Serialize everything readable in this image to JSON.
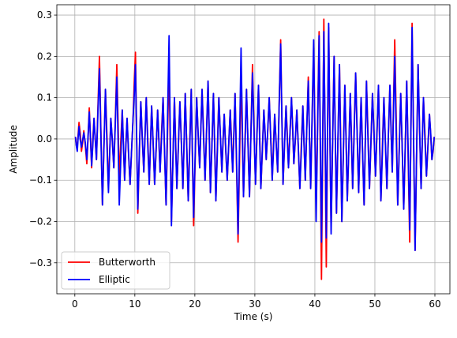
{
  "chart_data": {
    "type": "line",
    "xlabel": "Time (s)",
    "ylabel": "Amplitude",
    "xlim": [
      -3,
      62.5
    ],
    "ylim": [
      -0.375,
      0.325
    ],
    "xticks": [
      0,
      10,
      20,
      30,
      40,
      50,
      60
    ],
    "yticks": [
      -0.3,
      -0.2,
      -0.1,
      0.0,
      0.1,
      0.2,
      0.3
    ],
    "xtick_labels": [
      "0",
      "10",
      "20",
      "30",
      "40",
      "50",
      "60"
    ],
    "ytick_labels": [
      "−0.3",
      "−0.2",
      "−0.1",
      "0.0",
      "0.1",
      "0.2",
      "0.3"
    ],
    "grid": true,
    "legend_position": "lower-left",
    "series": [
      {
        "name": "Butterworth",
        "color": "#ff0000",
        "peaks": [
          [
            0.1,
            0.005
          ],
          [
            0.4,
            -0.02
          ],
          [
            0.7,
            0.04
          ],
          [
            1.1,
            -0.03
          ],
          [
            1.5,
            0.02
          ],
          [
            2.0,
            -0.06
          ],
          [
            2.4,
            0.075
          ],
          [
            2.8,
            -0.07
          ],
          [
            3.2,
            0.05
          ],
          [
            3.6,
            -0.05
          ],
          [
            4.1,
            0.2
          ],
          [
            4.6,
            -0.16
          ],
          [
            5.1,
            0.12
          ],
          [
            5.6,
            -0.12
          ],
          [
            6.0,
            0.05
          ],
          [
            6.5,
            -0.07
          ],
          [
            7.0,
            0.18
          ],
          [
            7.4,
            -0.1
          ],
          [
            7.9,
            0.07
          ],
          [
            8.3,
            -0.1
          ],
          [
            8.7,
            0.05
          ],
          [
            9.2,
            -0.11
          ],
          [
            9.7,
            0.05
          ],
          [
            10.1,
            0.21
          ],
          [
            10.5,
            -0.18
          ],
          [
            11.0,
            0.09
          ],
          [
            11.5,
            -0.08
          ],
          [
            11.9,
            0.1
          ],
          [
            12.4,
            -0.11
          ],
          [
            12.8,
            0.08
          ],
          [
            13.3,
            -0.11
          ],
          [
            13.8,
            0.07
          ],
          [
            14.2,
            -0.08
          ],
          [
            14.7,
            0.1
          ],
          [
            15.2,
            -0.16
          ],
          [
            15.7,
            0.18
          ],
          [
            16.1,
            -0.2
          ],
          [
            16.6,
            0.1
          ],
          [
            17.0,
            -0.12
          ],
          [
            17.5,
            0.09
          ],
          [
            18.0,
            -0.12
          ],
          [
            18.4,
            0.11
          ],
          [
            18.9,
            -0.15
          ],
          [
            19.4,
            0.12
          ],
          [
            19.8,
            -0.21
          ],
          [
            20.3,
            0.1
          ],
          [
            20.8,
            -0.07
          ],
          [
            21.2,
            0.12
          ],
          [
            21.7,
            -0.1
          ],
          [
            22.2,
            0.14
          ],
          [
            22.6,
            -0.13
          ],
          [
            23.1,
            0.11
          ],
          [
            23.5,
            -0.15
          ],
          [
            24.0,
            0.1
          ],
          [
            24.5,
            -0.08
          ],
          [
            24.9,
            0.06
          ],
          [
            25.4,
            -0.1
          ],
          [
            25.9,
            0.07
          ],
          [
            26.3,
            -0.08
          ],
          [
            26.7,
            0.11
          ],
          [
            27.2,
            -0.25
          ],
          [
            27.7,
            0.16
          ],
          [
            28.1,
            -0.14
          ],
          [
            28.6,
            0.12
          ],
          [
            29.1,
            -0.14
          ],
          [
            29.6,
            0.18
          ],
          [
            30.1,
            -0.11
          ],
          [
            30.6,
            0.13
          ],
          [
            31.0,
            -0.12
          ],
          [
            31.5,
            0.07
          ],
          [
            31.9,
            -0.05
          ],
          [
            32.4,
            0.1
          ],
          [
            32.9,
            -0.1
          ],
          [
            33.3,
            0.06
          ],
          [
            33.8,
            -0.08
          ],
          [
            34.3,
            0.24
          ],
          [
            34.7,
            -0.11
          ],
          [
            35.2,
            0.08
          ],
          [
            35.6,
            -0.07
          ],
          [
            36.1,
            0.1
          ],
          [
            36.5,
            -0.06
          ],
          [
            37.0,
            0.07
          ],
          [
            37.5,
            -0.12
          ],
          [
            38.0,
            0.08
          ],
          [
            38.4,
            -0.1
          ],
          [
            38.9,
            0.15
          ],
          [
            39.3,
            -0.12
          ],
          [
            39.8,
            0.22
          ],
          [
            40.2,
            -0.16
          ],
          [
            40.7,
            0.26
          ],
          [
            41.1,
            -0.34
          ],
          [
            41.5,
            0.29
          ],
          [
            41.9,
            -0.31
          ],
          [
            42.3,
            0.27
          ],
          [
            42.7,
            -0.22
          ],
          [
            43.2,
            0.2
          ],
          [
            43.6,
            -0.18
          ],
          [
            44.1,
            0.18
          ],
          [
            44.5,
            -0.2
          ],
          [
            45.0,
            0.13
          ],
          [
            45.4,
            -0.15
          ],
          [
            45.9,
            0.11
          ],
          [
            46.3,
            -0.12
          ],
          [
            46.8,
            0.16
          ],
          [
            47.3,
            -0.13
          ],
          [
            47.7,
            0.1
          ],
          [
            48.2,
            -0.16
          ],
          [
            48.6,
            0.14
          ],
          [
            49.1,
            -0.12
          ],
          [
            49.6,
            0.11
          ],
          [
            50.1,
            -0.09
          ],
          [
            50.6,
            0.13
          ],
          [
            51.0,
            -0.15
          ],
          [
            51.5,
            0.1
          ],
          [
            52.0,
            -0.12
          ],
          [
            52.5,
            0.13
          ],
          [
            52.9,
            -0.08
          ],
          [
            53.3,
            0.24
          ],
          [
            53.8,
            -0.16
          ],
          [
            54.3,
            0.11
          ],
          [
            54.8,
            -0.17
          ],
          [
            55.3,
            0.14
          ],
          [
            55.8,
            -0.25
          ],
          [
            56.2,
            0.28
          ],
          [
            56.7,
            -0.27
          ],
          [
            57.2,
            0.18
          ],
          [
            57.7,
            -0.12
          ],
          [
            58.1,
            0.1
          ],
          [
            58.6,
            -0.09
          ],
          [
            59.1,
            0.06
          ],
          [
            59.5,
            -0.05
          ],
          [
            59.9,
            0.005
          ]
        ]
      },
      {
        "name": "Elliptic",
        "color": "#0000ff",
        "peaks": [
          [
            0.1,
            0.005
          ],
          [
            0.4,
            -0.03
          ],
          [
            0.7,
            0.03
          ],
          [
            1.1,
            -0.02
          ],
          [
            1.5,
            0.015
          ],
          [
            2.0,
            -0.05
          ],
          [
            2.4,
            0.065
          ],
          [
            2.8,
            -0.065
          ],
          [
            3.2,
            0.05
          ],
          [
            3.6,
            -0.05
          ],
          [
            4.1,
            0.17
          ],
          [
            4.6,
            -0.16
          ],
          [
            5.1,
            0.12
          ],
          [
            5.6,
            -0.13
          ],
          [
            6.0,
            0.05
          ],
          [
            6.5,
            -0.07
          ],
          [
            7.0,
            0.15
          ],
          [
            7.4,
            -0.16
          ],
          [
            7.9,
            0.07
          ],
          [
            8.3,
            -0.1
          ],
          [
            8.7,
            0.05
          ],
          [
            9.2,
            -0.11
          ],
          [
            9.7,
            0.05
          ],
          [
            10.1,
            0.18
          ],
          [
            10.5,
            -0.17
          ],
          [
            11.0,
            0.09
          ],
          [
            11.5,
            -0.08
          ],
          [
            11.9,
            0.1
          ],
          [
            12.4,
            -0.11
          ],
          [
            12.8,
            0.08
          ],
          [
            13.3,
            -0.11
          ],
          [
            13.8,
            0.07
          ],
          [
            14.2,
            -0.08
          ],
          [
            14.7,
            0.1
          ],
          [
            15.2,
            -0.16
          ],
          [
            15.7,
            0.25
          ],
          [
            16.1,
            -0.21
          ],
          [
            16.6,
            0.1
          ],
          [
            17.0,
            -0.12
          ],
          [
            17.5,
            0.09
          ],
          [
            18.0,
            -0.12
          ],
          [
            18.4,
            0.11
          ],
          [
            18.9,
            -0.15
          ],
          [
            19.4,
            0.12
          ],
          [
            19.8,
            -0.19
          ],
          [
            20.3,
            0.1
          ],
          [
            20.8,
            -0.07
          ],
          [
            21.2,
            0.12
          ],
          [
            21.7,
            -0.1
          ],
          [
            22.2,
            0.14
          ],
          [
            22.6,
            -0.13
          ],
          [
            23.1,
            0.11
          ],
          [
            23.5,
            -0.15
          ],
          [
            24.0,
            0.1
          ],
          [
            24.5,
            -0.08
          ],
          [
            24.9,
            0.06
          ],
          [
            25.4,
            -0.1
          ],
          [
            25.9,
            0.07
          ],
          [
            26.3,
            -0.08
          ],
          [
            26.7,
            0.11
          ],
          [
            27.2,
            -0.23
          ],
          [
            27.7,
            0.22
          ],
          [
            28.1,
            -0.14
          ],
          [
            28.6,
            0.12
          ],
          [
            29.1,
            -0.14
          ],
          [
            29.6,
            0.16
          ],
          [
            30.1,
            -0.11
          ],
          [
            30.6,
            0.13
          ],
          [
            31.0,
            -0.12
          ],
          [
            31.5,
            0.07
          ],
          [
            31.9,
            -0.05
          ],
          [
            32.4,
            0.1
          ],
          [
            32.9,
            -0.1
          ],
          [
            33.3,
            0.06
          ],
          [
            33.8,
            -0.08
          ],
          [
            34.3,
            0.23
          ],
          [
            34.7,
            -0.11
          ],
          [
            35.2,
            0.08
          ],
          [
            35.6,
            -0.07
          ],
          [
            36.1,
            0.1
          ],
          [
            36.5,
            -0.06
          ],
          [
            37.0,
            0.07
          ],
          [
            37.5,
            -0.12
          ],
          [
            38.0,
            0.08
          ],
          [
            38.4,
            -0.1
          ],
          [
            38.9,
            0.14
          ],
          [
            39.3,
            -0.12
          ],
          [
            39.8,
            0.24
          ],
          [
            40.2,
            -0.2
          ],
          [
            40.7,
            0.25
          ],
          [
            41.1,
            -0.25
          ],
          [
            41.5,
            0.26
          ],
          [
            41.9,
            -0.24
          ],
          [
            42.3,
            0.28
          ],
          [
            42.7,
            -0.23
          ],
          [
            43.2,
            0.2
          ],
          [
            43.6,
            -0.18
          ],
          [
            44.1,
            0.18
          ],
          [
            44.5,
            -0.2
          ],
          [
            45.0,
            0.13
          ],
          [
            45.4,
            -0.15
          ],
          [
            45.9,
            0.11
          ],
          [
            46.3,
            -0.12
          ],
          [
            46.8,
            0.16
          ],
          [
            47.3,
            -0.13
          ],
          [
            47.7,
            0.1
          ],
          [
            48.2,
            -0.16
          ],
          [
            48.6,
            0.14
          ],
          [
            49.1,
            -0.12
          ],
          [
            49.6,
            0.11
          ],
          [
            50.1,
            -0.09
          ],
          [
            50.6,
            0.13
          ],
          [
            51.0,
            -0.15
          ],
          [
            51.5,
            0.1
          ],
          [
            52.0,
            -0.12
          ],
          [
            52.5,
            0.13
          ],
          [
            52.9,
            -0.08
          ],
          [
            53.3,
            0.2
          ],
          [
            53.8,
            -0.16
          ],
          [
            54.3,
            0.11
          ],
          [
            54.8,
            -0.17
          ],
          [
            55.3,
            0.14
          ],
          [
            55.8,
            -0.22
          ],
          [
            56.2,
            0.27
          ],
          [
            56.7,
            -0.27
          ],
          [
            57.2,
            0.18
          ],
          [
            57.7,
            -0.12
          ],
          [
            58.1,
            0.1
          ],
          [
            58.6,
            -0.09
          ],
          [
            59.1,
            0.06
          ],
          [
            59.5,
            -0.05
          ],
          [
            59.9,
            0.005
          ]
        ]
      }
    ]
  }
}
